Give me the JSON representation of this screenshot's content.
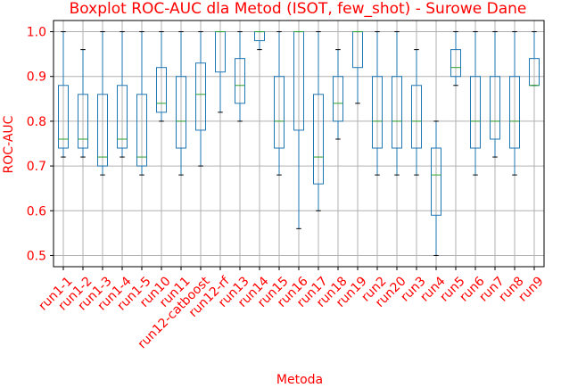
{
  "chart_data": {
    "type": "boxplot",
    "title": "Boxplot ROC-AUC dla Metod (ISOT, few_shot) - Surowe Dane",
    "xlabel": "Metoda",
    "ylabel": "ROC-AUC",
    "ylim": [
      0.475,
      1.025
    ],
    "yticks": [
      0.5,
      0.6,
      0.7,
      0.8,
      0.9,
      1.0
    ],
    "ytick_labels": [
      "0.5",
      "0.6",
      "0.7",
      "0.8",
      "0.9",
      "1.0"
    ],
    "grid": true,
    "colors": {
      "text": "#ff0000",
      "box": "#1f77b4",
      "median": "#2ca02c",
      "grid": "#b0b0b0",
      "axis": "#000000"
    },
    "categories": [
      "run1-1",
      "run1-2",
      "run1-3",
      "run1-4",
      "run1-5",
      "run10",
      "run11",
      "run12-catboost",
      "run12-rf",
      "run13",
      "run14",
      "run15",
      "run16",
      "run17",
      "run18",
      "run19",
      "run2",
      "run20",
      "run3",
      "run4",
      "run5",
      "run6",
      "run7",
      "run8",
      "run9"
    ],
    "boxes": [
      {
        "min": 0.72,
        "q1": 0.74,
        "median": 0.76,
        "q3": 0.88,
        "max": 1.0
      },
      {
        "min": 0.72,
        "q1": 0.74,
        "median": 0.76,
        "q3": 0.86,
        "max": 0.96
      },
      {
        "min": 0.68,
        "q1": 0.7,
        "median": 0.72,
        "q3": 0.86,
        "max": 1.0
      },
      {
        "min": 0.72,
        "q1": 0.74,
        "median": 0.76,
        "q3": 0.88,
        "max": 1.0
      },
      {
        "min": 0.68,
        "q1": 0.7,
        "median": 0.72,
        "q3": 0.86,
        "max": 1.0
      },
      {
        "min": 0.8,
        "q1": 0.82,
        "median": 0.84,
        "q3": 0.92,
        "max": 1.0
      },
      {
        "min": 0.68,
        "q1": 0.74,
        "median": 0.8,
        "q3": 0.9,
        "max": 1.0
      },
      {
        "min": 0.7,
        "q1": 0.78,
        "median": 0.86,
        "q3": 0.93,
        "max": 1.0
      },
      {
        "min": 0.82,
        "q1": 0.91,
        "median": 1.0,
        "q3": 1.0,
        "max": 1.0
      },
      {
        "min": 0.8,
        "q1": 0.84,
        "median": 0.88,
        "q3": 0.94,
        "max": 1.0
      },
      {
        "min": 0.96,
        "q1": 0.98,
        "median": 1.0,
        "q3": 1.0,
        "max": 1.0
      },
      {
        "min": 0.68,
        "q1": 0.74,
        "median": 0.8,
        "q3": 0.9,
        "max": 1.0
      },
      {
        "min": 0.56,
        "q1": 0.78,
        "median": 1.0,
        "q3": 1.0,
        "max": 1.0
      },
      {
        "min": 0.6,
        "q1": 0.66,
        "median": 0.72,
        "q3": 0.86,
        "max": 1.0
      },
      {
        "min": 0.76,
        "q1": 0.8,
        "median": 0.84,
        "q3": 0.9,
        "max": 0.96
      },
      {
        "min": 0.84,
        "q1": 0.92,
        "median": 1.0,
        "q3": 1.0,
        "max": 1.0
      },
      {
        "min": 0.68,
        "q1": 0.74,
        "median": 0.8,
        "q3": 0.9,
        "max": 1.0
      },
      {
        "min": 0.68,
        "q1": 0.74,
        "median": 0.8,
        "q3": 0.9,
        "max": 1.0
      },
      {
        "min": 0.68,
        "q1": 0.74,
        "median": 0.8,
        "q3": 0.88,
        "max": 0.96
      },
      {
        "min": 0.5,
        "q1": 0.59,
        "median": 0.68,
        "q3": 0.74,
        "max": 0.8
      },
      {
        "min": 0.88,
        "q1": 0.9,
        "median": 0.92,
        "q3": 0.96,
        "max": 1.0
      },
      {
        "min": 0.68,
        "q1": 0.74,
        "median": 0.8,
        "q3": 0.9,
        "max": 1.0
      },
      {
        "min": 0.72,
        "q1": 0.76,
        "median": 0.8,
        "q3": 0.9,
        "max": 1.0
      },
      {
        "min": 0.68,
        "q1": 0.74,
        "median": 0.8,
        "q3": 0.9,
        "max": 1.0
      },
      {
        "min": 0.88,
        "q1": 0.88,
        "median": 0.88,
        "q3": 0.94,
        "max": 1.0
      }
    ]
  }
}
